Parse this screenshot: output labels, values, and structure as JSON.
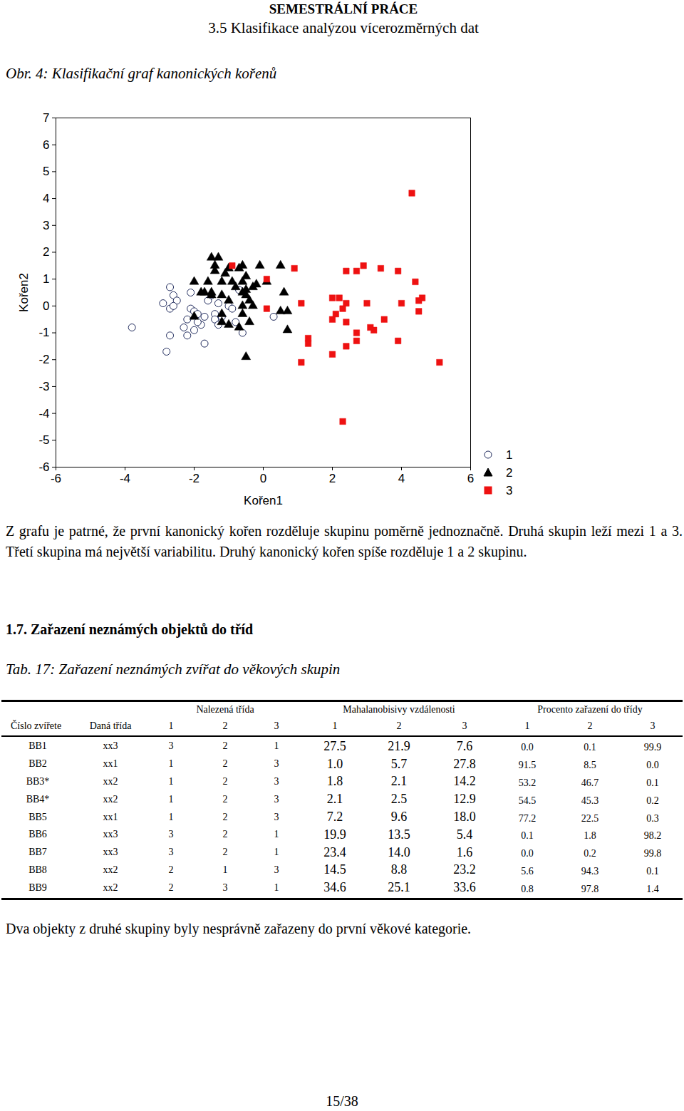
{
  "header": {
    "title": "SEMESTRÁLNÍ PRÁCE",
    "subtitle": "3.5 Klasifikace analýzou vícerozměrných dat"
  },
  "figure_caption": "Obr. 4: Klasifikační graf kanonických kořenů",
  "chart_data": {
    "type": "scatter",
    "x_label": "Kořen1",
    "y_label": "Kořen2",
    "xlim": [
      -6,
      6
    ],
    "ylim": [
      -6,
      7
    ],
    "xticks": [
      -6,
      -4,
      -2,
      0,
      2,
      4,
      6
    ],
    "yticks": [
      -6,
      -5,
      -4,
      -3,
      -2,
      -1,
      0,
      1,
      2,
      3,
      4,
      5,
      6,
      7
    ],
    "grid": false,
    "legend": "right",
    "series": [
      {
        "name": "1",
        "color": "#1f2a5c",
        "marker": "circle-open",
        "values": [
          [
            -3.8,
            -0.8
          ],
          [
            -2.7,
            0.7
          ],
          [
            -2.6,
            0.4
          ],
          [
            -2.5,
            0.2
          ],
          [
            -2.9,
            0.1
          ],
          [
            -2.7,
            -0.1
          ],
          [
            -2.6,
            0.0
          ],
          [
            -2.1,
            0.5
          ],
          [
            -2.7,
            -1.1
          ],
          [
            -2.8,
            -1.7
          ],
          [
            -2.1,
            -0.1
          ],
          [
            -2.0,
            -0.2
          ],
          [
            -1.9,
            -0.3
          ],
          [
            -2.2,
            -0.5
          ],
          [
            -2.3,
            -0.8
          ],
          [
            -2.0,
            -0.9
          ],
          [
            -2.2,
            -1.1
          ],
          [
            -1.7,
            -1.4
          ],
          [
            -1.8,
            -0.7
          ],
          [
            -1.6,
            0.2
          ],
          [
            -1.7,
            -0.4
          ],
          [
            -1.4,
            -0.3
          ],
          [
            -1.3,
            0.1
          ],
          [
            -1.4,
            -0.5
          ],
          [
            -1.3,
            -0.7
          ],
          [
            -1.2,
            -0.4
          ],
          [
            -1.0,
            0.0
          ],
          [
            -0.9,
            -0.1
          ],
          [
            -0.8,
            -0.6
          ],
          [
            -0.7,
            0.6
          ],
          [
            -0.6,
            -1.0
          ],
          [
            0.3,
            -0.4
          ],
          [
            -1.5,
            0.4
          ],
          [
            -1.9,
            -0.6
          ]
        ]
      },
      {
        "name": "2",
        "color": "#000000",
        "marker": "triangle",
        "values": [
          [
            -1.5,
            1.8
          ],
          [
            -1.3,
            1.8
          ],
          [
            -1.4,
            1.5
          ],
          [
            -1.0,
            1.4
          ],
          [
            -2.0,
            0.9
          ],
          [
            -1.6,
            0.9
          ],
          [
            -1.4,
            1.3
          ],
          [
            -1.1,
            1.2
          ],
          [
            -0.9,
            0.9
          ],
          [
            -0.7,
            1.4
          ],
          [
            -0.6,
            1.5
          ],
          [
            -0.5,
            1.1
          ],
          [
            -0.6,
            0.9
          ],
          [
            -0.5,
            0.6
          ],
          [
            -0.3,
            0.7
          ],
          [
            -0.2,
            0.8
          ],
          [
            -0.6,
            0.5
          ],
          [
            -0.5,
            0.4
          ],
          [
            -0.4,
            0.2
          ],
          [
            -0.6,
            0.0
          ],
          [
            -0.3,
            0.0
          ],
          [
            -0.6,
            -0.3
          ],
          [
            -0.7,
            -0.8
          ],
          [
            -1.0,
            -0.7
          ],
          [
            -1.2,
            -0.6
          ],
          [
            -1.2,
            -0.3
          ],
          [
            -1.2,
            0.4
          ],
          [
            -1.5,
            0.5
          ],
          [
            -1.7,
            0.5
          ],
          [
            -1.8,
            0.5
          ],
          [
            -1.0,
            0.2
          ],
          [
            -0.8,
            0.7
          ],
          [
            -0.4,
            -0.6
          ],
          [
            -0.1,
            1.5
          ],
          [
            0.5,
            1.5
          ],
          [
            0.1,
            0.9
          ],
          [
            0.6,
            0.5
          ],
          [
            0.7,
            -0.2
          ],
          [
            0.5,
            -0.2
          ],
          [
            0.7,
            -0.9
          ],
          [
            -0.5,
            -1.9
          ],
          [
            -2.0,
            -0.4
          ],
          [
            -1.5,
            0.4
          ],
          [
            -1.2,
            0.9
          ]
        ]
      },
      {
        "name": "3",
        "color": "#ee1111",
        "marker": "square",
        "values": [
          [
            -0.9,
            1.5
          ],
          [
            0.1,
            1.0
          ],
          [
            0.1,
            -0.1
          ],
          [
            0.9,
            1.4
          ],
          [
            1.1,
            0.1
          ],
          [
            1.3,
            -1.2
          ],
          [
            1.3,
            -1.4
          ],
          [
            1.1,
            -2.1
          ],
          [
            2.0,
            0.3
          ],
          [
            2.2,
            0.3
          ],
          [
            2.4,
            0.1
          ],
          [
            2.3,
            -0.1
          ],
          [
            2.1,
            -0.3
          ],
          [
            2.0,
            -0.5
          ],
          [
            2.4,
            -0.6
          ],
          [
            2.0,
            -1.8
          ],
          [
            2.4,
            -1.5
          ],
          [
            2.3,
            -4.3
          ],
          [
            2.4,
            1.3
          ],
          [
            2.7,
            1.3
          ],
          [
            2.9,
            1.5
          ],
          [
            3.4,
            1.4
          ],
          [
            3.9,
            1.3
          ],
          [
            3.0,
            0.1
          ],
          [
            2.7,
            -1.0
          ],
          [
            2.7,
            -1.3
          ],
          [
            3.1,
            -0.8
          ],
          [
            3.2,
            -0.9
          ],
          [
            3.5,
            -0.5
          ],
          [
            4.0,
            0.1
          ],
          [
            3.9,
            -1.3
          ],
          [
            4.3,
            4.2
          ],
          [
            4.4,
            0.9
          ],
          [
            4.6,
            0.3
          ],
          [
            4.5,
            0.2
          ],
          [
            4.5,
            -0.2
          ],
          [
            5.1,
            -2.1
          ]
        ]
      }
    ]
  },
  "paragraphs": [
    "Z grafu je patrné, že první kanonický kořen rozděluje skupinu poměrně jednoznačně. Druhá skupin leží mezi 1 a 3. Třetí skupina má největší variabilitu. Druhý kanonický kořen spíše rozděluje 1 a 2 skupinu."
  ],
  "section_heading": "1.7. Zařazení neznámých objektů do tříd",
  "table_caption": "Tab. 17: Zařazení neznámých zvířat do věkových skupin",
  "table": {
    "columns": [
      {
        "label": "Číslo zvířete"
      },
      {
        "label": "Daná třída"
      },
      {
        "group": "Nalezená třída",
        "subcolumns": [
          "1",
          "2",
          "3"
        ]
      },
      {
        "group": "Mahalanobisivy vzdálenosti",
        "subcolumns": [
          "1",
          "2",
          "3"
        ]
      },
      {
        "group": "Procento zařazení do třídy",
        "subcolumns": [
          "1",
          "2",
          "3"
        ]
      }
    ],
    "rows": [
      [
        "BB1",
        "xx3",
        "3",
        "2",
        "1",
        "27.5",
        "21.9",
        "7.6",
        "0.0",
        "0.1",
        "99.9"
      ],
      [
        "BB2",
        "xx1",
        "1",
        "2",
        "3",
        "1.0",
        "5.7",
        "27.8",
        "91.5",
        "8.5",
        "0.0"
      ],
      [
        "BB3*",
        "xx2",
        "1",
        "2",
        "3",
        "1.8",
        "2.1",
        "14.2",
        "53.2",
        "46.7",
        "0.1"
      ],
      [
        "BB4*",
        "xx2",
        "1",
        "2",
        "3",
        "2.1",
        "2.5",
        "12.9",
        "54.5",
        "45.3",
        "0.2"
      ],
      [
        "BB5",
        "xx1",
        "1",
        "2",
        "3",
        "7.2",
        "9.6",
        "18.0",
        "77.2",
        "22.5",
        "0.3"
      ],
      [
        "BB6",
        "xx3",
        "3",
        "2",
        "1",
        "19.9",
        "13.5",
        "5.4",
        "0.1",
        "1.8",
        "98.2"
      ],
      [
        "BB7",
        "xx3",
        "3",
        "2",
        "1",
        "23.4",
        "14.0",
        "1.6",
        "0.0",
        "0.2",
        "99.8"
      ],
      [
        "BB8",
        "xx2",
        "2",
        "1",
        "3",
        "14.5",
        "8.8",
        "23.2",
        "5.6",
        "94.3",
        "0.1"
      ],
      [
        "BB9",
        "xx2",
        "2",
        "3",
        "1",
        "34.6",
        "25.1",
        "33.6",
        "0.8",
        "97.8",
        "1.4"
      ]
    ]
  },
  "closing_text": "Dva objekty z druhé skupiny byly nesprávně zařazeny do první věkové kategorie.",
  "page_number": "15/38"
}
